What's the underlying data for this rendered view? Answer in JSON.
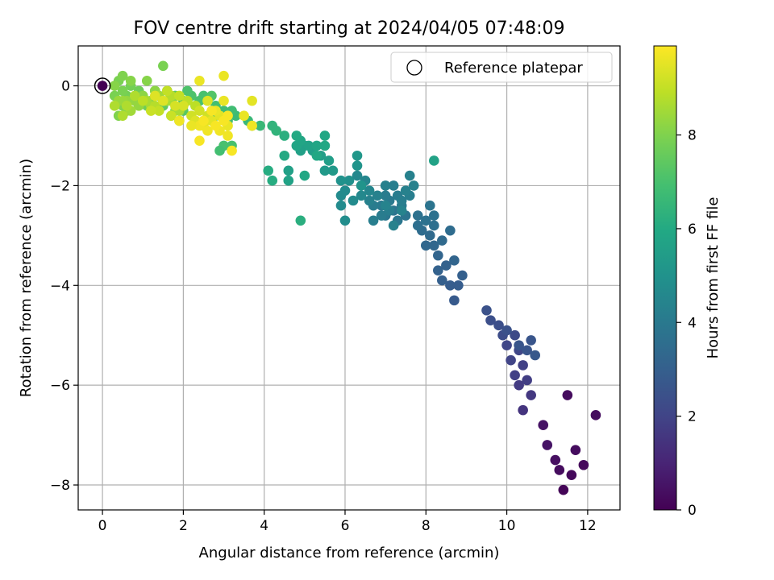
{
  "chart_data": {
    "type": "scatter",
    "title": "FOV centre drift starting at 2024/04/05 07:48:09",
    "xlabel": "Angular distance from reference (arcmin)",
    "ylabel": "Rotation from reference (arcmin)",
    "xlim": [
      -0.6,
      12.8
    ],
    "ylim": [
      -8.5,
      0.8
    ],
    "xticks": [
      0,
      2,
      4,
      6,
      8,
      10,
      12
    ],
    "yticks": [
      0,
      -2,
      -4,
      -6,
      -8
    ],
    "grid": true,
    "legend": {
      "location": "upper right",
      "entries": [
        "Reference platepar"
      ]
    },
    "reference_point": {
      "x": 0,
      "y": 0,
      "c": 0
    },
    "colorbar": {
      "label": "Hours from first FF file",
      "range": [
        0,
        9.9
      ],
      "ticks": [
        0,
        2,
        4,
        6,
        8
      ],
      "colormap": "viridis"
    },
    "colors": {
      "grid": "#b0b0b0",
      "reference_edge": "#000000"
    },
    "points": [
      [
        11.4,
        -8.1,
        0.1
      ],
      [
        11.6,
        -7.8,
        0.2
      ],
      [
        11.9,
        -7.6,
        0.2
      ],
      [
        11.7,
        -7.3,
        0.3
      ],
      [
        11.3,
        -7.7,
        0.3
      ],
      [
        11.2,
        -7.5,
        0.4
      ],
      [
        11.0,
        -7.2,
        0.5
      ],
      [
        11.5,
        -6.2,
        0.3
      ],
      [
        12.2,
        -6.6,
        0.3
      ],
      [
        10.9,
        -6.8,
        0.5
      ],
      [
        10.4,
        -6.5,
        1.5
      ],
      [
        10.6,
        -6.2,
        1.6
      ],
      [
        10.3,
        -6.0,
        1.7
      ],
      [
        10.5,
        -5.9,
        1.8
      ],
      [
        10.2,
        -5.8,
        1.9
      ],
      [
        10.4,
        -5.6,
        1.9
      ],
      [
        10.1,
        -5.5,
        2.0
      ],
      [
        10.3,
        -5.3,
        2.1
      ],
      [
        10.0,
        -5.2,
        2.1
      ],
      [
        10.2,
        -5.0,
        2.2
      ],
      [
        9.9,
        -5.0,
        2.3
      ],
      [
        9.8,
        -4.8,
        2.4
      ],
      [
        9.6,
        -4.7,
        2.4
      ],
      [
        9.5,
        -4.5,
        2.5
      ],
      [
        10.0,
        -4.9,
        2.5
      ],
      [
        10.3,
        -5.2,
        2.6
      ],
      [
        10.6,
        -5.1,
        2.6
      ],
      [
        10.7,
        -5.4,
        2.7
      ],
      [
        10.5,
        -5.3,
        2.6
      ],
      [
        8.7,
        -4.3,
        2.8
      ],
      [
        8.8,
        -4.0,
        2.9
      ],
      [
        8.6,
        -4.0,
        2.9
      ],
      [
        8.9,
        -3.8,
        3.0
      ],
      [
        8.4,
        -3.9,
        3.0
      ],
      [
        8.3,
        -3.7,
        3.1
      ],
      [
        8.5,
        -3.6,
        3.1
      ],
      [
        8.7,
        -3.5,
        3.2
      ],
      [
        8.3,
        -3.4,
        3.2
      ],
      [
        8.2,
        -3.2,
        3.3
      ],
      [
        8.0,
        -3.2,
        3.3
      ],
      [
        8.4,
        -3.1,
        3.4
      ],
      [
        8.1,
        -3.0,
        3.4
      ],
      [
        7.9,
        -2.9,
        3.5
      ],
      [
        8.6,
        -2.9,
        3.5
      ],
      [
        8.2,
        -2.8,
        3.6
      ],
      [
        7.8,
        -2.8,
        3.6
      ],
      [
        8.0,
        -2.7,
        3.7
      ],
      [
        8.2,
        -2.6,
        3.7
      ],
      [
        7.8,
        -2.6,
        3.7
      ],
      [
        8.1,
        -2.4,
        3.8
      ],
      [
        7.5,
        -2.6,
        3.8
      ],
      [
        7.2,
        -2.5,
        3.8
      ],
      [
        7.3,
        -2.7,
        3.9
      ],
      [
        7.0,
        -2.6,
        3.9
      ],
      [
        7.1,
        -2.3,
        4.0
      ],
      [
        6.9,
        -2.4,
        4.0
      ],
      [
        7.4,
        -2.4,
        4.0
      ],
      [
        6.7,
        -2.4,
        4.1
      ],
      [
        6.9,
        -2.6,
        4.1
      ],
      [
        7.3,
        -2.2,
        4.1
      ],
      [
        7.0,
        -2.2,
        4.1
      ],
      [
        7.2,
        -2.0,
        4.2
      ],
      [
        7.4,
        -2.3,
        4.2
      ],
      [
        7.6,
        -2.2,
        4.2
      ],
      [
        7.1,
        -2.5,
        4.2
      ],
      [
        6.7,
        -2.7,
        4.2
      ],
      [
        7.6,
        -1.8,
        4.3
      ],
      [
        7.7,
        -2.0,
        4.3
      ],
      [
        7.5,
        -2.1,
        4.3
      ],
      [
        7.0,
        -2.0,
        4.3
      ],
      [
        6.8,
        -2.2,
        4.3
      ],
      [
        7.2,
        -2.8,
        4.3
      ],
      [
        6.6,
        -2.3,
        4.3
      ],
      [
        7.4,
        -2.5,
        4.4
      ],
      [
        7.0,
        -2.4,
        4.4
      ],
      [
        6.6,
        -2.1,
        4.5
      ],
      [
        6.5,
        -1.9,
        4.5
      ],
      [
        6.3,
        -1.8,
        4.6
      ],
      [
        6.4,
        -2.2,
        4.6
      ],
      [
        6.2,
        -2.3,
        4.7
      ],
      [
        6.0,
        -2.1,
        4.7
      ],
      [
        5.9,
        -2.2,
        4.7
      ],
      [
        5.9,
        -2.4,
        4.7
      ],
      [
        6.0,
        -2.7,
        4.8
      ],
      [
        6.1,
        -1.9,
        4.9
      ],
      [
        5.9,
        -1.9,
        5.0
      ],
      [
        6.3,
        -1.6,
        5.1
      ],
      [
        6.4,
        -2.0,
        5.1
      ],
      [
        6.3,
        -1.4,
        5.2
      ],
      [
        5.7,
        -1.7,
        5.3
      ],
      [
        5.5,
        -1.7,
        5.3
      ],
      [
        5.6,
        -1.5,
        5.5
      ],
      [
        5.4,
        -1.4,
        5.5
      ],
      [
        5.2,
        -1.3,
        5.5
      ],
      [
        5.0,
        -1.2,
        5.6
      ],
      [
        4.9,
        -1.3,
        5.6
      ],
      [
        4.6,
        -1.7,
        5.6
      ],
      [
        4.6,
        -1.9,
        5.7
      ],
      [
        5.1,
        -1.2,
        5.7
      ],
      [
        4.8,
        -1.2,
        5.8
      ],
      [
        4.9,
        -1.1,
        5.8
      ],
      [
        5.3,
        -1.2,
        5.8
      ],
      [
        5.5,
        -1.2,
        5.9
      ],
      [
        5.5,
        -1.0,
        5.9
      ],
      [
        5.3,
        -1.4,
        5.9
      ],
      [
        5.0,
        -1.8,
        5.9
      ],
      [
        4.5,
        -1.4,
        6.0
      ],
      [
        4.8,
        -1.0,
        6.0
      ],
      [
        4.2,
        -1.9,
        6.1
      ],
      [
        4.1,
        -1.7,
        6.1
      ],
      [
        4.9,
        -2.7,
        6.2
      ],
      [
        4.5,
        -1.0,
        6.2
      ],
      [
        8.2,
        -1.5,
        5.7
      ],
      [
        4.3,
        -0.9,
        6.4
      ],
      [
        4.2,
        -0.8,
        6.4
      ],
      [
        3.9,
        -0.8,
        6.6
      ],
      [
        3.7,
        -0.8,
        6.6
      ],
      [
        3.6,
        -0.7,
        6.6
      ],
      [
        3.3,
        -0.6,
        6.7
      ],
      [
        3.2,
        -0.5,
        6.8
      ],
      [
        3.0,
        -0.5,
        6.8
      ],
      [
        3.1,
        -0.7,
        6.8
      ],
      [
        2.8,
        -0.4,
        6.9
      ],
      [
        2.6,
        -0.3,
        6.9
      ],
      [
        2.8,
        -0.6,
        6.9
      ],
      [
        2.5,
        -0.2,
        7.0
      ],
      [
        2.4,
        -0.3,
        7.0
      ],
      [
        2.2,
        -0.2,
        7.1
      ],
      [
        2.1,
        -0.1,
        7.1
      ],
      [
        2.3,
        -0.4,
        7.1
      ],
      [
        2.0,
        -0.3,
        7.2
      ],
      [
        2.7,
        -0.2,
        7.2
      ],
      [
        3.0,
        -1.2,
        7.0
      ],
      [
        3.2,
        -1.2,
        7.0
      ],
      [
        2.9,
        -1.3,
        6.9
      ],
      [
        2.0,
        -0.5,
        7.3
      ],
      [
        1.8,
        -0.2,
        7.3
      ],
      [
        1.6,
        -0.1,
        7.4
      ],
      [
        1.4,
        -0.2,
        7.4
      ],
      [
        1.5,
        -0.4,
        7.4
      ],
      [
        1.7,
        -0.6,
        7.5
      ],
      [
        1.9,
        -0.7,
        7.5
      ],
      [
        1.3,
        -0.1,
        7.6
      ],
      [
        1.2,
        -0.3,
        7.6
      ],
      [
        1.0,
        -0.2,
        7.6
      ],
      [
        1.1,
        -0.4,
        7.7
      ],
      [
        0.9,
        -0.1,
        7.7
      ],
      [
        0.8,
        -0.3,
        7.8
      ],
      [
        0.7,
        0.0,
        7.8
      ],
      [
        0.6,
        -0.2,
        7.8
      ],
      [
        0.5,
        -0.1,
        7.9
      ],
      [
        0.4,
        0.1,
        7.9
      ],
      [
        0.3,
        -0.2,
        7.9
      ],
      [
        0.5,
        -0.4,
        8.0
      ],
      [
        0.6,
        -0.5,
        8.0
      ],
      [
        0.4,
        -0.6,
        8.0
      ],
      [
        0.5,
        0.2,
        8.0
      ],
      [
        0.7,
        0.1,
        8.1
      ],
      [
        0.3,
        0.0,
        8.1
      ],
      [
        1.5,
        0.4,
        7.9
      ],
      [
        1.1,
        0.1,
        8.1
      ],
      [
        1.3,
        -0.1,
        8.2
      ],
      [
        1.7,
        -0.3,
        8.2
      ],
      [
        1.8,
        -0.5,
        8.2
      ],
      [
        1.0,
        -0.2,
        8.2
      ],
      [
        0.8,
        -0.3,
        8.3
      ],
      [
        0.9,
        -0.4,
        8.3
      ],
      [
        0.6,
        -0.3,
        8.3
      ],
      [
        0.4,
        -0.3,
        8.4
      ],
      [
        0.5,
        -0.3,
        8.4
      ],
      [
        0.7,
        -0.5,
        8.5
      ],
      [
        1.2,
        -0.4,
        8.5
      ],
      [
        1.4,
        -0.2,
        8.5
      ],
      [
        1.6,
        -0.3,
        8.6
      ],
      [
        1.9,
        -0.5,
        8.6
      ],
      [
        1.1,
        -0.3,
        8.6
      ],
      [
        0.8,
        -0.2,
        8.7
      ],
      [
        0.6,
        -0.4,
        8.7
      ],
      [
        0.5,
        -0.6,
        8.7
      ],
      [
        0.3,
        -0.4,
        8.7
      ],
      [
        1.3,
        -0.4,
        8.8
      ],
      [
        1.5,
        -0.3,
        8.8
      ],
      [
        1.7,
        -0.2,
        8.8
      ],
      [
        1.0,
        -0.3,
        8.9
      ],
      [
        2.1,
        -0.3,
        8.9
      ],
      [
        2.3,
        -0.4,
        8.9
      ],
      [
        1.9,
        -0.2,
        9.0
      ],
      [
        1.6,
        -0.1,
        9.0
      ],
      [
        1.4,
        -0.5,
        9.0
      ],
      [
        1.2,
        -0.5,
        9.1
      ],
      [
        1.7,
        -0.6,
        9.1
      ],
      [
        2.2,
        -0.6,
        9.2
      ],
      [
        2.4,
        -0.5,
        9.2
      ],
      [
        2.6,
        -0.6,
        9.2
      ],
      [
        1.8,
        -0.4,
        9.3
      ],
      [
        2.0,
        -0.4,
        9.3
      ],
      [
        1.5,
        -0.3,
        9.4
      ],
      [
        1.3,
        -0.2,
        9.4
      ],
      [
        2.3,
        -0.7,
        9.4
      ],
      [
        2.5,
        -0.8,
        9.5
      ],
      [
        2.7,
        -0.7,
        9.5
      ],
      [
        2.9,
        -0.6,
        9.5
      ],
      [
        3.1,
        -0.8,
        9.6
      ],
      [
        3.0,
        -0.3,
        9.6
      ],
      [
        2.8,
        -0.5,
        9.6
      ],
      [
        2.6,
        -0.9,
        9.7
      ],
      [
        2.9,
        -0.9,
        9.7
      ],
      [
        3.1,
        -1.0,
        9.7
      ],
      [
        2.4,
        -0.8,
        9.7
      ],
      [
        3.0,
        -0.7,
        9.8
      ],
      [
        2.8,
        -0.8,
        9.8
      ],
      [
        3.2,
        -1.3,
        9.8
      ],
      [
        3.7,
        -0.3,
        9.5
      ],
      [
        3.5,
        -0.6,
        9.6
      ],
      [
        3.7,
        -0.8,
        9.7
      ],
      [
        2.4,
        0.1,
        9.6
      ],
      [
        2.4,
        -1.1,
        9.8
      ],
      [
        3.0,
        0.2,
        9.6
      ],
      [
        2.6,
        -0.3,
        9.4
      ],
      [
        2.2,
        -0.8,
        9.6
      ],
      [
        1.9,
        -0.7,
        9.7
      ],
      [
        2.5,
        -0.7,
        9.8
      ],
      [
        3.1,
        -0.6,
        9.8
      ],
      [
        2.7,
        -0.5,
        9.8
      ]
    ]
  }
}
